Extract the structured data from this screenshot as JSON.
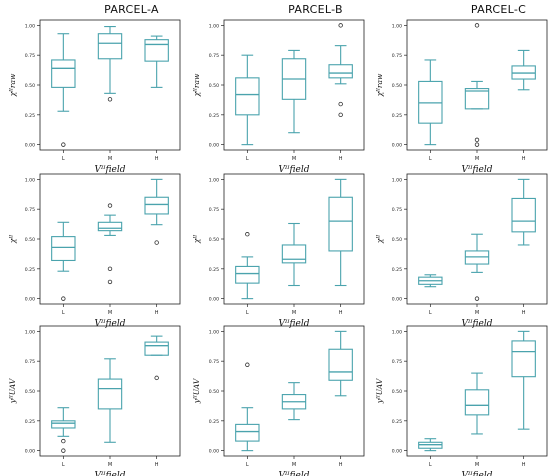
{
  "columns": [
    "PARCEL-A",
    "PARCEL-B",
    "PARCEL-C"
  ],
  "rows": [
    {
      "ylabel": "χᴵᴵraw"
    },
    {
      "ylabel": "χᴵᴵ"
    },
    {
      "ylabel": "yᴵᴵUAV"
    }
  ],
  "xlabel": "Vᴵᴵfield",
  "box_color": "#4aa3ad",
  "outlier_color": "#333333",
  "chart_data": [
    {
      "type": "box",
      "parcel": "PARCEL-A",
      "row": 0,
      "categories": [
        "L",
        "M",
        "H"
      ],
      "ylim": [
        0,
        1
      ],
      "yticks": [
        "0.00",
        "0.25",
        "0.50",
        "0.75",
        "1.00"
      ],
      "boxes": [
        {
          "min": 0.28,
          "q1": 0.48,
          "median": 0.64,
          "q3": 0.71,
          "max": 0.93,
          "outliers": [
            0.0
          ]
        },
        {
          "min": 0.43,
          "q1": 0.72,
          "median": 0.85,
          "q3": 0.93,
          "max": 0.99,
          "outliers": [
            0.38
          ]
        },
        {
          "min": 0.48,
          "q1": 0.7,
          "median": 0.84,
          "q3": 0.88,
          "max": 0.91,
          "outliers": []
        }
      ]
    },
    {
      "type": "box",
      "parcel": "PARCEL-B",
      "row": 0,
      "categories": [
        "L",
        "M",
        "H"
      ],
      "ylim": [
        0,
        1
      ],
      "yticks": [
        "0.00",
        "0.25",
        "0.50",
        "0.75",
        "1.00"
      ],
      "boxes": [
        {
          "min": 0.0,
          "q1": 0.25,
          "median": 0.42,
          "q3": 0.56,
          "max": 0.75,
          "outliers": []
        },
        {
          "min": 0.1,
          "q1": 0.38,
          "median": 0.55,
          "q3": 0.72,
          "max": 0.79,
          "outliers": []
        },
        {
          "min": 0.51,
          "q1": 0.56,
          "median": 0.6,
          "q3": 0.67,
          "max": 0.83,
          "outliers": [
            0.25,
            0.34,
            1.0
          ]
        }
      ]
    },
    {
      "type": "box",
      "parcel": "PARCEL-C",
      "row": 0,
      "categories": [
        "L",
        "M",
        "H"
      ],
      "ylim": [
        0,
        1
      ],
      "yticks": [
        "0.00",
        "0.25",
        "0.50",
        "0.75",
        "1.00"
      ],
      "boxes": [
        {
          "min": 0.0,
          "q1": 0.18,
          "median": 0.35,
          "q3": 0.53,
          "max": 0.71,
          "outliers": []
        },
        {
          "min": 0.3,
          "q1": 0.3,
          "median": 0.45,
          "q3": 0.47,
          "max": 0.53,
          "outliers": [
            0.0,
            0.04,
            1.0
          ]
        },
        {
          "min": 0.46,
          "q1": 0.55,
          "median": 0.6,
          "q3": 0.66,
          "max": 0.79,
          "outliers": []
        }
      ]
    },
    {
      "type": "box",
      "parcel": "PARCEL-A",
      "row": 1,
      "categories": [
        "L",
        "M",
        "H"
      ],
      "ylim": [
        0,
        1
      ],
      "yticks": [
        "0.00",
        "0.25",
        "0.50",
        "0.75",
        "1.00"
      ],
      "boxes": [
        {
          "min": 0.23,
          "q1": 0.32,
          "median": 0.43,
          "q3": 0.52,
          "max": 0.64,
          "outliers": [
            0.0
          ]
        },
        {
          "min": 0.53,
          "q1": 0.57,
          "median": 0.59,
          "q3": 0.64,
          "max": 0.7,
          "outliers": [
            0.14,
            0.25,
            0.78
          ]
        },
        {
          "min": 0.62,
          "q1": 0.71,
          "median": 0.79,
          "q3": 0.85,
          "max": 1.0,
          "outliers": [
            0.47
          ]
        }
      ]
    },
    {
      "type": "box",
      "parcel": "PARCEL-B",
      "row": 1,
      "categories": [
        "L",
        "M",
        "H"
      ],
      "ylim": [
        0,
        1
      ],
      "yticks": [
        "0.00",
        "0.25",
        "0.50",
        "0.75",
        "1.00"
      ],
      "boxes": [
        {
          "min": 0.0,
          "q1": 0.13,
          "median": 0.21,
          "q3": 0.27,
          "max": 0.35,
          "outliers": [
            0.54
          ]
        },
        {
          "min": 0.11,
          "q1": 0.3,
          "median": 0.33,
          "q3": 0.45,
          "max": 0.63,
          "outliers": []
        },
        {
          "min": 0.11,
          "q1": 0.4,
          "median": 0.65,
          "q3": 0.85,
          "max": 1.0,
          "outliers": []
        }
      ]
    },
    {
      "type": "box",
      "parcel": "PARCEL-C",
      "row": 1,
      "categories": [
        "L",
        "M",
        "H"
      ],
      "ylim": [
        0,
        1
      ],
      "yticks": [
        "0.00",
        "0.25",
        "0.50",
        "0.75",
        "1.00"
      ],
      "boxes": [
        {
          "min": 0.1,
          "q1": 0.12,
          "median": 0.15,
          "q3": 0.18,
          "max": 0.2,
          "outliers": []
        },
        {
          "min": 0.22,
          "q1": 0.29,
          "median": 0.35,
          "q3": 0.4,
          "max": 0.54,
          "outliers": [
            0.0
          ]
        },
        {
          "min": 0.45,
          "q1": 0.56,
          "median": 0.65,
          "q3": 0.84,
          "max": 1.0,
          "outliers": []
        }
      ]
    },
    {
      "type": "box",
      "parcel": "PARCEL-A",
      "row": 2,
      "categories": [
        "L",
        "M",
        "H"
      ],
      "ylim": [
        0,
        1
      ],
      "yticks": [
        "0.00",
        "0.25",
        "0.50",
        "0.75",
        "1.00"
      ],
      "boxes": [
        {
          "min": 0.12,
          "q1": 0.19,
          "median": 0.23,
          "q3": 0.25,
          "max": 0.36,
          "outliers": [
            0.0,
            0.08
          ]
        },
        {
          "min": 0.07,
          "q1": 0.35,
          "median": 0.52,
          "q3": 0.6,
          "max": 0.77,
          "outliers": []
        },
        {
          "min": 0.8,
          "q1": 0.8,
          "median": 0.88,
          "q3": 0.91,
          "max": 0.96,
          "outliers": [
            0.61
          ]
        }
      ]
    },
    {
      "type": "box",
      "parcel": "PARCEL-B",
      "row": 2,
      "categories": [
        "L",
        "M",
        "H"
      ],
      "ylim": [
        0,
        1
      ],
      "yticks": [
        "0.00",
        "0.25",
        "0.50",
        "0.75",
        "1.00"
      ],
      "boxes": [
        {
          "min": 0.0,
          "q1": 0.08,
          "median": 0.16,
          "q3": 0.22,
          "max": 0.36,
          "outliers": [
            0.72
          ]
        },
        {
          "min": 0.26,
          "q1": 0.35,
          "median": 0.41,
          "q3": 0.47,
          "max": 0.57,
          "outliers": []
        },
        {
          "min": 0.46,
          "q1": 0.59,
          "median": 0.66,
          "q3": 0.85,
          "max": 1.0,
          "outliers": []
        }
      ]
    },
    {
      "type": "box",
      "parcel": "PARCEL-C",
      "row": 2,
      "categories": [
        "L",
        "M",
        "H"
      ],
      "ylim": [
        0,
        1
      ],
      "yticks": [
        "0.00",
        "0.25",
        "0.50",
        "0.75",
        "1.00"
      ],
      "boxes": [
        {
          "min": 0.0,
          "q1": 0.02,
          "median": 0.05,
          "q3": 0.07,
          "max": 0.1,
          "outliers": []
        },
        {
          "min": 0.14,
          "q1": 0.3,
          "median": 0.38,
          "q3": 0.51,
          "max": 0.65,
          "outliers": []
        },
        {
          "min": 0.18,
          "q1": 0.62,
          "median": 0.83,
          "q3": 0.92,
          "max": 1.0,
          "outliers": []
        }
      ]
    }
  ]
}
